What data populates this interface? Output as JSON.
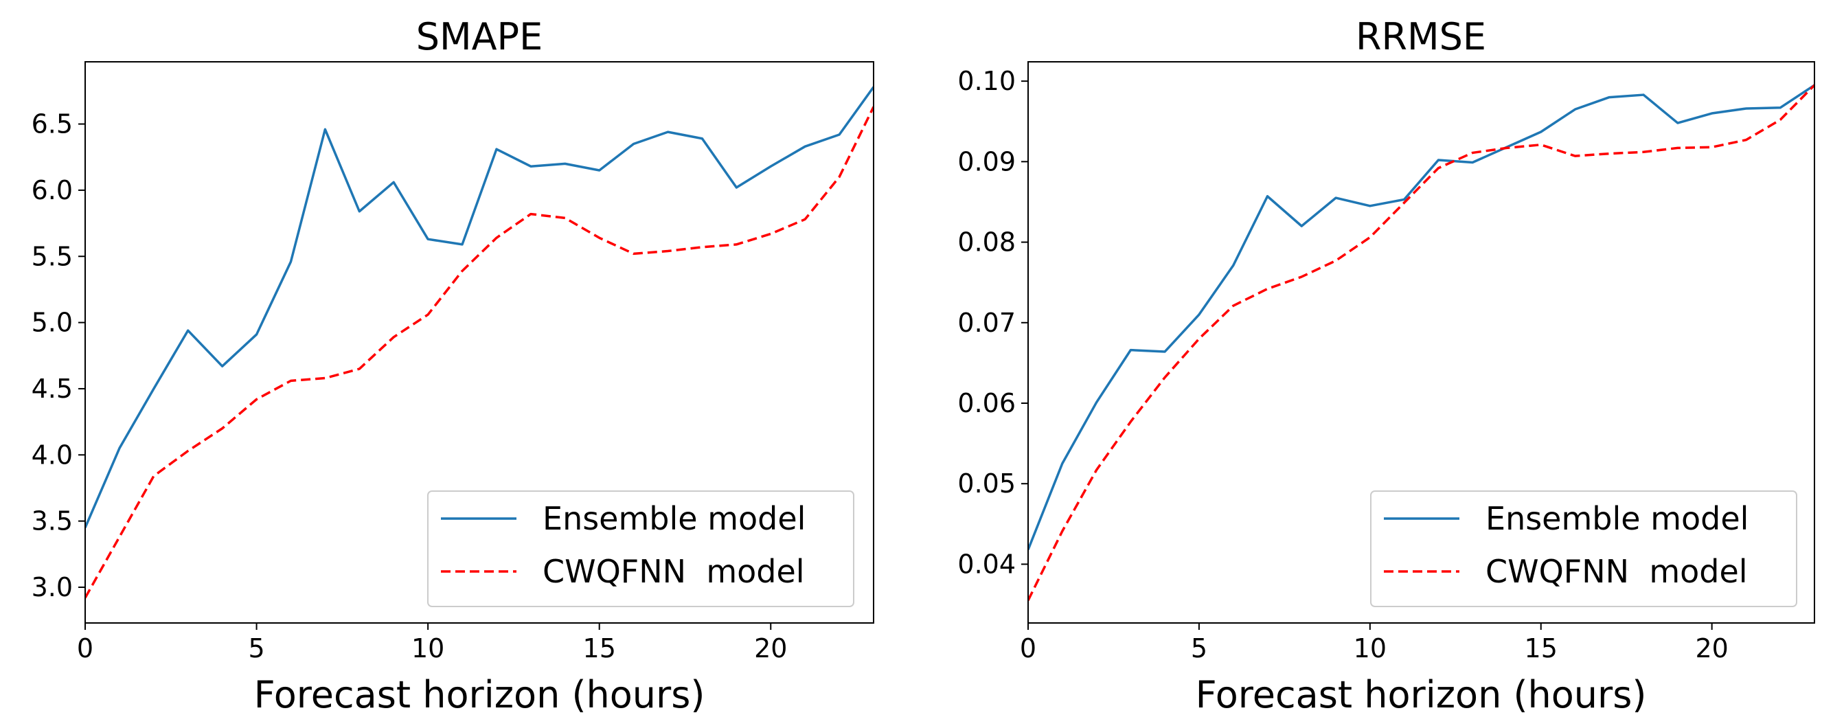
{
  "chart_data": [
    {
      "type": "line",
      "title": "SMAPE",
      "xlabel": "Forecast horizon (hours)",
      "ylabel": "",
      "xlim": [
        0,
        23
      ],
      "ylim": [
        2.73,
        6.97
      ],
      "xticks": [
        0,
        5,
        10,
        15,
        20
      ],
      "yticks": [
        3.0,
        3.5,
        4.0,
        4.5,
        5.0,
        5.5,
        6.0,
        6.5
      ],
      "ytick_labels": [
        "3.0",
        "3.5",
        "4.0",
        "4.5",
        "5.0",
        "5.5",
        "6.0",
        "6.5"
      ],
      "legend_position": "lower-right",
      "x": [
        0,
        1,
        2,
        3,
        4,
        5,
        6,
        7,
        8,
        9,
        10,
        11,
        12,
        13,
        14,
        15,
        16,
        17,
        18,
        19,
        20,
        21,
        22,
        23
      ],
      "series": [
        {
          "name": "Ensemble model",
          "color": "#1f77b4",
          "style": "solid",
          "values": [
            3.45,
            4.05,
            4.5,
            4.94,
            4.67,
            4.91,
            5.46,
            6.46,
            5.84,
            6.06,
            5.63,
            5.59,
            6.31,
            6.18,
            6.2,
            6.15,
            6.35,
            6.44,
            6.39,
            6.02,
            6.18,
            6.33,
            6.42,
            6.78
          ]
        },
        {
          "name": "CWQFNN  model",
          "color": "#ff0000",
          "style": "dashed",
          "values": [
            2.92,
            3.38,
            3.84,
            4.03,
            4.2,
            4.42,
            4.56,
            4.58,
            4.65,
            4.89,
            5.06,
            5.39,
            5.64,
            5.82,
            5.79,
            5.64,
            5.52,
            5.54,
            5.57,
            5.59,
            5.67,
            5.78,
            6.1,
            6.63
          ]
        }
      ]
    },
    {
      "type": "line",
      "title": "RRMSE",
      "xlabel": "Forecast horizon (hours)",
      "ylabel": "",
      "xlim": [
        0,
        23
      ],
      "ylim": [
        0.0327,
        0.1024
      ],
      "xticks": [
        0,
        5,
        10,
        15,
        20
      ],
      "yticks": [
        0.04,
        0.05,
        0.06,
        0.07,
        0.08,
        0.09,
        0.1
      ],
      "ytick_labels": [
        "0.04",
        "0.05",
        "0.06",
        "0.07",
        "0.08",
        "0.09",
        "0.10"
      ],
      "legend_position": "lower-right",
      "x": [
        0,
        1,
        2,
        3,
        4,
        5,
        6,
        7,
        8,
        9,
        10,
        11,
        12,
        13,
        14,
        15,
        16,
        17,
        18,
        19,
        20,
        21,
        22,
        23
      ],
      "series": [
        {
          "name": "Ensemble model",
          "color": "#1f77b4",
          "style": "solid",
          "values": [
            0.0418,
            0.0525,
            0.0601,
            0.0666,
            0.0664,
            0.071,
            0.0771,
            0.0857,
            0.082,
            0.0855,
            0.0845,
            0.0853,
            0.0902,
            0.0899,
            0.0918,
            0.0937,
            0.0965,
            0.098,
            0.0983,
            0.0948,
            0.096,
            0.0966,
            0.0967,
            0.0995
          ]
        },
        {
          "name": "CWQFNN  model",
          "color": "#ff0000",
          "style": "dashed",
          "values": [
            0.0355,
            0.0441,
            0.0517,
            0.0577,
            0.0632,
            0.068,
            0.0721,
            0.0742,
            0.0757,
            0.0777,
            0.0806,
            0.0849,
            0.0892,
            0.0911,
            0.0917,
            0.0921,
            0.0907,
            0.091,
            0.0912,
            0.0917,
            0.0918,
            0.0927,
            0.0952,
            0.0995
          ]
        }
      ]
    }
  ]
}
